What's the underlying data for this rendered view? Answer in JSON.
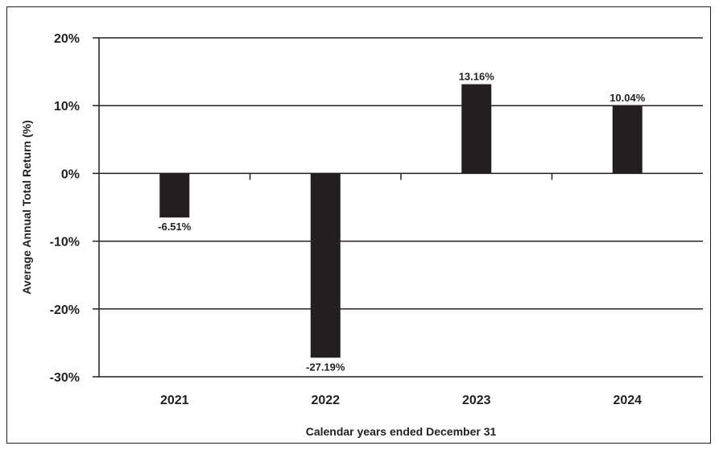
{
  "chart_data": {
    "type": "bar",
    "categories": [
      "2021",
      "2022",
      "2023",
      "2024"
    ],
    "values": [
      -6.51,
      -27.19,
      13.16,
      10.04
    ],
    "value_labels": [
      "-6.51%",
      "-27.19%",
      "13.16%",
      "10.04%"
    ],
    "title": "",
    "xlabel": "Calendar years ended December 31",
    "ylabel": "Average Annual Total Return (%)",
    "ylim": [
      -30,
      20
    ],
    "yticks": [
      20,
      10,
      0,
      -10,
      -20,
      -30
    ],
    "ytick_labels": [
      "20%",
      "10%",
      "0%",
      "-10%",
      "-20%",
      "-30%"
    ],
    "grid": true,
    "bar_color": "#231f20",
    "gridline_color": "#231f20"
  }
}
